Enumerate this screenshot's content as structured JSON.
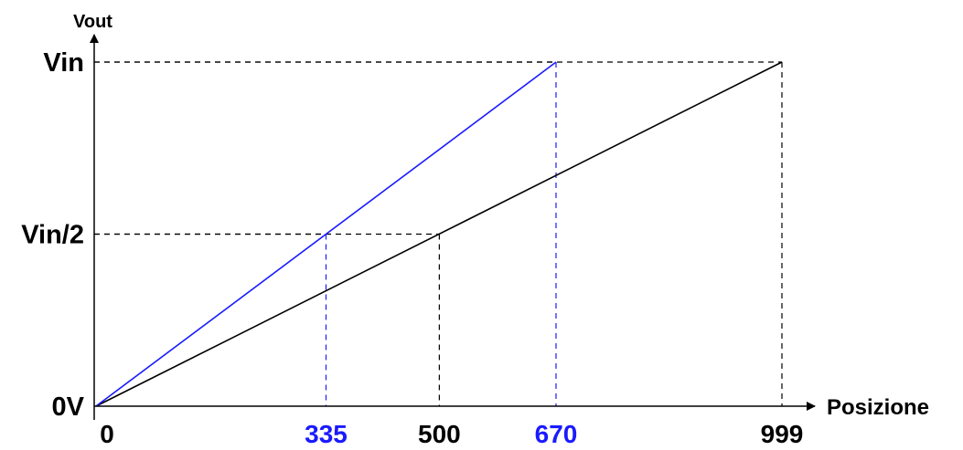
{
  "chart_data": {
    "type": "line",
    "title": "",
    "xlabel": "Posizione",
    "ylabel": "Vout",
    "xlim": [
      0,
      999
    ],
    "y_levels": [
      {
        "label": "0V",
        "value": 0
      },
      {
        "label": "Vin/2",
        "value": 0.5
      },
      {
        "label": "Vin",
        "value": 1
      }
    ],
    "x_ticks": [
      {
        "label": "0",
        "value": 0,
        "color": "#000000"
      },
      {
        "label": "335",
        "value": 335,
        "color": "#1a1aff"
      },
      {
        "label": "500",
        "value": 500,
        "color": "#000000"
      },
      {
        "label": "670",
        "value": 670,
        "color": "#1a1aff"
      },
      {
        "label": "999",
        "value": 999,
        "color": "#000000"
      }
    ],
    "series": [
      {
        "color": "#000000",
        "x": [
          0,
          999
        ],
        "y": [
          0,
          1
        ]
      },
      {
        "color": "#1a1aff",
        "x": [
          0,
          670
        ],
        "y": [
          0,
          1
        ]
      }
    ],
    "guides": [
      {
        "color": "#000000",
        "x": 999,
        "y": 1
      },
      {
        "color": "#000000",
        "x": 500,
        "y": 0.5
      },
      {
        "color": "#1a1aff",
        "x": 670,
        "y": 1
      },
      {
        "color": "#1a1aff",
        "x": 335,
        "y": 0.5
      }
    ]
  }
}
